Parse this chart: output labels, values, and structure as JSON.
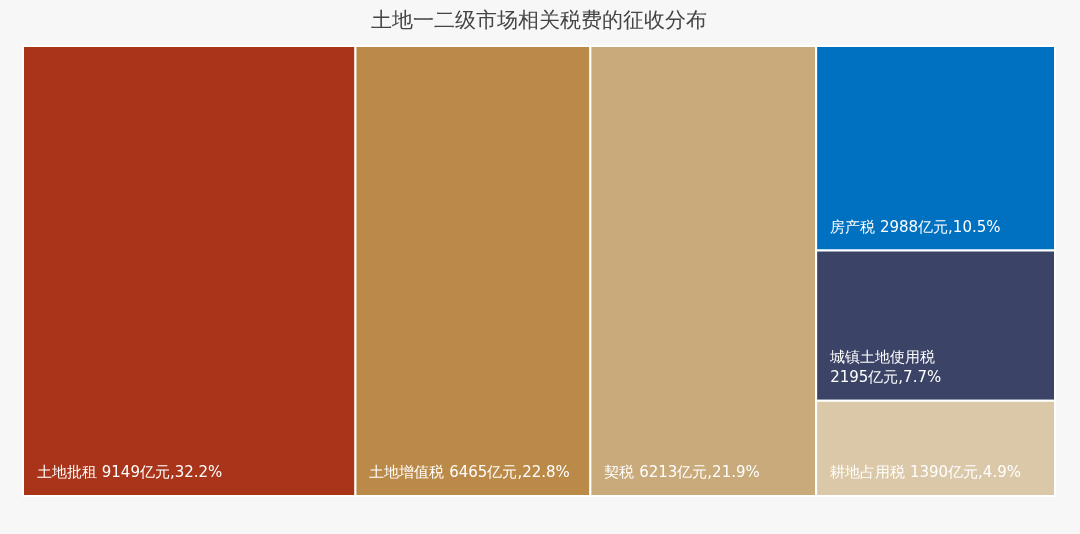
{
  "chart_data": {
    "type": "other",
    "title": "土地一二级市场相关税费的征收分布",
    "categories": [
      "土地批租",
      "土地增值税",
      "契税",
      "房产税",
      "城镇土地使用税",
      "耕地占用税"
    ],
    "values": [
      9149,
      6465,
      6213,
      2988,
      2195,
      1390
    ],
    "value_labels": [
      "9149亿元,32.2%",
      "6465亿元,22.8%",
      "6213亿元,21.9%",
      "2988亿元,10.5%",
      "2195亿元,7.7%",
      "1390亿元,4.9%"
    ],
    "colors": [
      "#a9341a",
      "#bb8a48",
      "#c9aa7b",
      "#0070c0",
      "#3b4466",
      "#dbc8a8"
    ]
  }
}
